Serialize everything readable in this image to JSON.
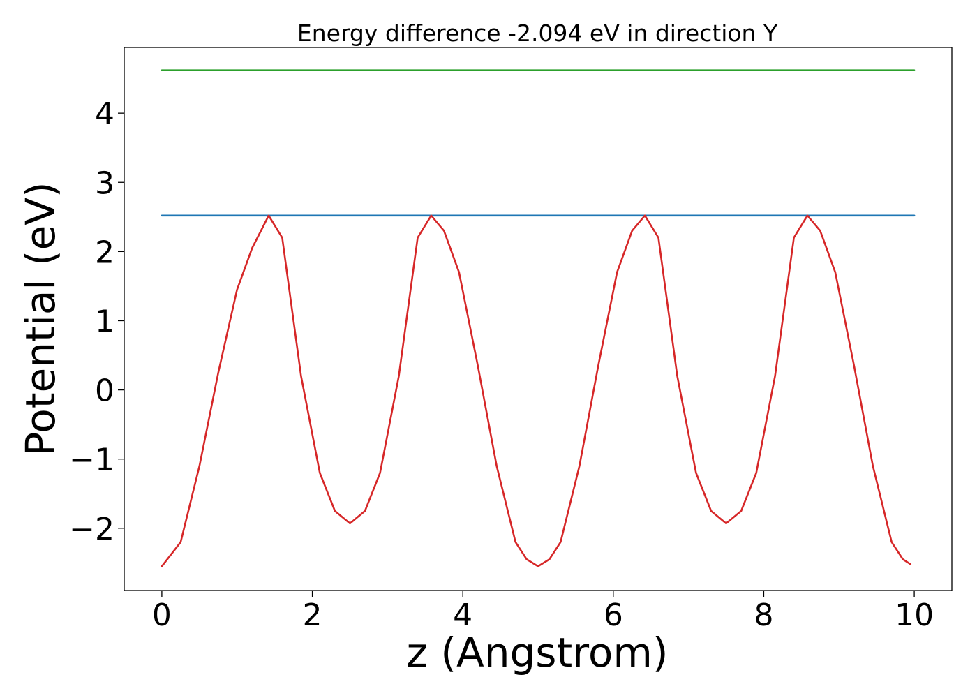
{
  "chart_data": {
    "type": "line",
    "title": "Energy difference -2.094 eV in direction Y",
    "xlabel": "z (Angstrom)",
    "ylabel": "Potential (eV)",
    "xlim": [
      -0.5,
      10.5
    ],
    "ylim": [
      -2.9,
      4.95
    ],
    "xticks": [
      0,
      2,
      4,
      6,
      8,
      10
    ],
    "xtick_labels": [
      "0",
      "2",
      "4",
      "6",
      "8",
      "10"
    ],
    "yticks": [
      -2,
      -1,
      0,
      1,
      2,
      3,
      4
    ],
    "ytick_labels": [
      "−2",
      "−1",
      "0",
      "1",
      "2",
      "3",
      "4"
    ],
    "grid": false,
    "series": [
      {
        "color": "#2ca02c",
        "x": [
          0,
          10
        ],
        "y": [
          4.62,
          4.62
        ]
      },
      {
        "color": "#1f77b4",
        "x": [
          0,
          10
        ],
        "y": [
          2.52,
          2.52
        ]
      },
      {
        "color": "#d62728",
        "x": [
          0,
          0.25,
          0.5,
          0.75,
          1.0,
          1.2,
          1.42,
          1.6,
          1.85,
          2.1,
          2.3,
          2.5,
          2.7,
          2.9,
          3.15,
          3.4,
          3.58,
          3.75,
          3.95,
          4.2,
          4.45,
          4.7,
          4.85,
          5.0,
          5.15,
          5.3,
          5.55,
          5.8,
          6.05,
          6.25,
          6.42,
          6.6,
          6.85,
          7.1,
          7.3,
          7.5,
          7.7,
          7.9,
          8.15,
          8.4,
          8.58,
          8.75,
          8.95,
          9.2,
          9.45,
          9.7,
          9.85,
          9.95
        ],
        "y": [
          -2.55,
          -2.2,
          -1.1,
          0.25,
          1.45,
          2.05,
          2.52,
          2.2,
          0.2,
          -1.2,
          -1.75,
          -1.93,
          -1.75,
          -1.2,
          0.2,
          2.2,
          2.52,
          2.3,
          1.7,
          0.35,
          -1.1,
          -2.2,
          -2.45,
          -2.55,
          -2.45,
          -2.2,
          -1.1,
          0.35,
          1.7,
          2.3,
          2.52,
          2.2,
          0.2,
          -1.2,
          -1.75,
          -1.93,
          -1.75,
          -1.2,
          0.2,
          2.2,
          2.52,
          2.3,
          1.7,
          0.35,
          -1.1,
          -2.2,
          -2.45,
          -2.52
        ]
      }
    ]
  }
}
